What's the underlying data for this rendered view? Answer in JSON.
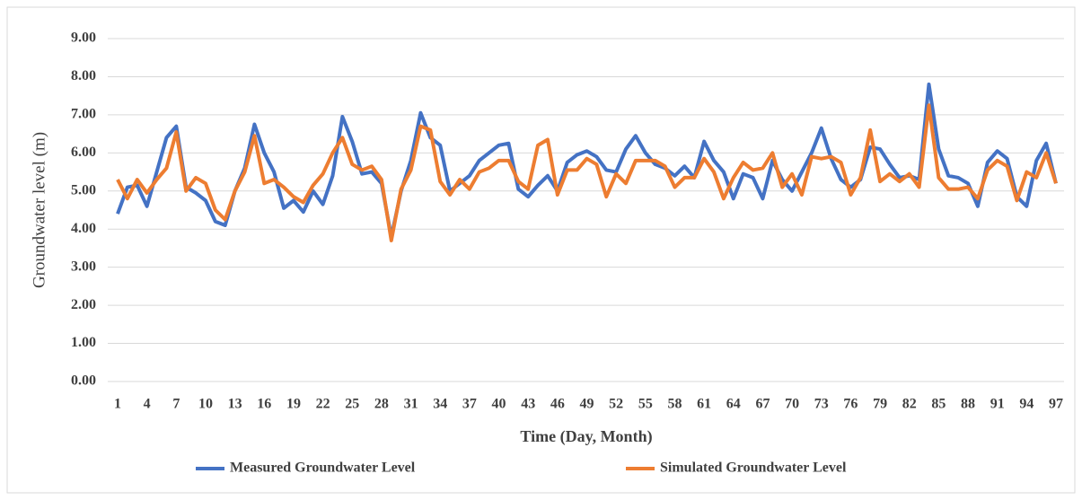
{
  "chart_data": {
    "type": "line",
    "y_label": "Groundwater level (m)",
    "x_label": "Time (Day, Month)",
    "x": [
      1,
      2,
      3,
      4,
      5,
      6,
      7,
      8,
      9,
      10,
      11,
      12,
      13,
      14,
      15,
      16,
      17,
      18,
      19,
      20,
      21,
      22,
      23,
      24,
      25,
      26,
      27,
      28,
      29,
      30,
      31,
      32,
      33,
      34,
      35,
      36,
      37,
      38,
      39,
      40,
      41,
      42,
      43,
      44,
      45,
      46,
      47,
      48,
      49,
      50,
      51,
      52,
      53,
      54,
      55,
      56,
      57,
      58,
      59,
      60,
      61,
      62,
      63,
      64,
      65,
      66,
      67,
      68,
      69,
      70,
      71,
      72,
      73,
      74,
      75,
      76,
      77,
      78,
      79,
      80,
      81,
      82,
      83,
      84,
      85,
      86,
      87,
      88,
      89,
      90,
      91,
      92,
      93,
      94,
      95,
      96,
      97
    ],
    "xlim": [
      1,
      97
    ],
    "xticks": [
      1,
      4,
      7,
      10,
      13,
      16,
      19,
      22,
      25,
      28,
      31,
      34,
      37,
      40,
      43,
      46,
      49,
      52,
      55,
      58,
      61,
      64,
      67,
      70,
      73,
      76,
      79,
      82,
      85,
      88,
      91,
      94,
      97
    ],
    "ylim": [
      0,
      9
    ],
    "yticks": [
      {
        "value": 0,
        "label": "0.00"
      },
      {
        "value": 1,
        "label": "1.00"
      },
      {
        "value": 2,
        "label": "2.00"
      },
      {
        "value": 3,
        "label": "3.00"
      },
      {
        "value": 4,
        "label": "4.00"
      },
      {
        "value": 5,
        "label": "5.00"
      },
      {
        "value": 6,
        "label": "6.00"
      },
      {
        "value": 7,
        "label": "7.00"
      },
      {
        "value": 8,
        "label": "8.00"
      },
      {
        "value": 9,
        "label": "9.00"
      }
    ],
    "grid": true,
    "legend": "bottom",
    "series": [
      {
        "name": "Measured Groundwater Level",
        "color": "#4472c4",
        "values": [
          4.4,
          5.1,
          5.15,
          4.6,
          5.5,
          6.4,
          6.7,
          5.1,
          4.95,
          4.75,
          4.2,
          4.1,
          5.0,
          5.6,
          6.75,
          6.0,
          5.5,
          4.55,
          4.75,
          4.45,
          5.0,
          4.65,
          5.4,
          6.95,
          6.3,
          5.45,
          5.5,
          5.2,
          3.8,
          5.0,
          5.8,
          7.05,
          6.4,
          6.2,
          5.0,
          5.2,
          5.4,
          5.8,
          6.0,
          6.2,
          6.25,
          5.05,
          4.85,
          5.15,
          5.4,
          5.0,
          5.75,
          5.95,
          6.05,
          5.9,
          5.55,
          5.5,
          6.1,
          6.45,
          6.0,
          5.7,
          5.6,
          5.4,
          5.65,
          5.35,
          6.3,
          5.8,
          5.5,
          4.8,
          5.45,
          5.35,
          4.8,
          5.8,
          5.3,
          5.0,
          5.5,
          6.0,
          6.65,
          5.85,
          5.3,
          5.1,
          5.3,
          6.15,
          6.1,
          5.7,
          5.35,
          5.4,
          5.3,
          7.8,
          6.1,
          5.4,
          5.35,
          5.2,
          4.6,
          5.75,
          6.05,
          5.85,
          4.85,
          4.6,
          5.8,
          6.25,
          5.2
        ]
      },
      {
        "name": "Simulated Groundwater Level",
        "color": "#ed7d31",
        "values": [
          5.3,
          4.8,
          5.3,
          4.95,
          5.3,
          5.6,
          6.55,
          5.0,
          5.35,
          5.2,
          4.5,
          4.25,
          5.0,
          5.5,
          6.45,
          5.2,
          5.3,
          5.1,
          4.85,
          4.7,
          5.15,
          5.45,
          6.0,
          6.4,
          5.7,
          5.55,
          5.65,
          5.3,
          3.7,
          5.05,
          5.55,
          6.7,
          6.6,
          5.25,
          4.9,
          5.3,
          5.05,
          5.5,
          5.6,
          5.8,
          5.8,
          5.25,
          5.05,
          6.2,
          6.35,
          4.9,
          5.55,
          5.55,
          5.85,
          5.7,
          4.85,
          5.45,
          5.2,
          5.8,
          5.8,
          5.8,
          5.65,
          5.1,
          5.35,
          5.35,
          5.85,
          5.5,
          4.8,
          5.35,
          5.75,
          5.55,
          5.6,
          6.0,
          5.1,
          5.45,
          4.9,
          5.9,
          5.85,
          5.9,
          5.75,
          4.9,
          5.35,
          6.6,
          5.25,
          5.45,
          5.25,
          5.45,
          5.1,
          7.25,
          5.35,
          5.05,
          5.05,
          5.1,
          4.8,
          5.55,
          5.8,
          5.65,
          4.75,
          5.5,
          5.35,
          6.0,
          5.2
        ]
      }
    ]
  }
}
